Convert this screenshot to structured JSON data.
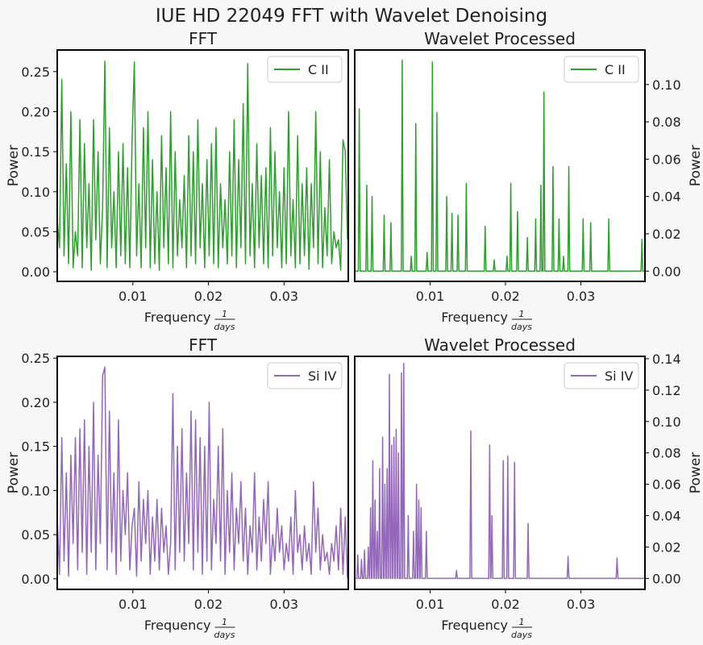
{
  "title": "IUE HD 22049 FFT with Wavelet Denoising",
  "colors": {
    "c_ii": "#2ca02c",
    "si_iv": "#9467bd",
    "background": "#f7f7f7"
  },
  "chart_data": [
    {
      "type": "line",
      "title": "FFT",
      "xlabel": "Frequency",
      "xlabel_fraction": {
        "num": "1",
        "den": "days"
      },
      "ylabel": "Power",
      "ylabel_side": "left",
      "legend": "top-right",
      "xlim": [
        0.0,
        0.0385
      ],
      "ylim": [
        -0.012,
        0.277
      ],
      "xticks": [
        0.01,
        0.02,
        0.03
      ],
      "xtick_labels": [
        "0.01",
        "0.02",
        "0.03"
      ],
      "yticks": [
        0.0,
        0.05,
        0.1,
        0.15,
        0.2,
        0.25
      ],
      "ytick_labels": [
        "0.00",
        "0.05",
        "0.10",
        "0.15",
        "0.20",
        "0.25"
      ],
      "series": [
        {
          "name": "C II",
          "color": "#2ca02c",
          "x": [
            0.0,
            0.0003,
            0.0006,
            0.0009,
            0.0012,
            0.0015,
            0.0018,
            0.0021,
            0.0024,
            0.0027,
            0.003,
            0.0033,
            0.0036,
            0.0039,
            0.0042,
            0.0045,
            0.0048,
            0.0051,
            0.0054,
            0.0057,
            0.006,
            0.0063,
            0.0066,
            0.0069,
            0.0072,
            0.0075,
            0.0078,
            0.0081,
            0.0084,
            0.0087,
            0.009,
            0.0093,
            0.0096,
            0.0099,
            0.0102,
            0.0105,
            0.0108,
            0.0111,
            0.0114,
            0.0117,
            0.012,
            0.0123,
            0.0126,
            0.0129,
            0.0132,
            0.0135,
            0.0138,
            0.0141,
            0.0144,
            0.0147,
            0.015,
            0.0153,
            0.0156,
            0.0159,
            0.0162,
            0.0165,
            0.0168,
            0.0171,
            0.0174,
            0.0177,
            0.018,
            0.0183,
            0.0186,
            0.0189,
            0.0192,
            0.0195,
            0.0198,
            0.0201,
            0.0204,
            0.0207,
            0.021,
            0.0213,
            0.0216,
            0.0219,
            0.0222,
            0.0225,
            0.0228,
            0.0231,
            0.0234,
            0.0237,
            0.024,
            0.0243,
            0.0246,
            0.0249,
            0.0252,
            0.0255,
            0.0258,
            0.0261,
            0.0264,
            0.0267,
            0.027,
            0.0273,
            0.0276,
            0.0279,
            0.0282,
            0.0285,
            0.0288,
            0.0291,
            0.0294,
            0.0297,
            0.03,
            0.0303,
            0.0306,
            0.0309,
            0.0312,
            0.0315,
            0.0318,
            0.0321,
            0.0324,
            0.0327,
            0.033,
            0.0333,
            0.0336,
            0.0339,
            0.0342,
            0.0345,
            0.0348,
            0.0351,
            0.0354,
            0.0357,
            0.036,
            0.0363,
            0.0366,
            0.0369,
            0.0372,
            0.0375,
            0.0378,
            0.0381,
            0.0384
          ],
          "y": [
            0.065,
            0.03,
            0.24,
            0.02,
            0.135,
            0.01,
            0.2,
            0.005,
            0.05,
            0.02,
            0.19,
            0.005,
            0.16,
            0.03,
            0.11,
            0.002,
            0.19,
            0.04,
            0.15,
            0.01,
            0.08,
            0.263,
            0.005,
            0.18,
            0.03,
            0.1,
            0.005,
            0.15,
            0.02,
            0.16,
            0.01,
            0.13,
            0.005,
            0.165,
            0.262,
            0.02,
            0.11,
            0.005,
            0.18,
            0.03,
            0.2,
            0.005,
            0.14,
            0.01,
            0.1,
            0.002,
            0.17,
            0.03,
            0.13,
            0.01,
            0.2,
            0.005,
            0.15,
            0.02,
            0.09,
            0.03,
            0.12,
            0.005,
            0.17,
            0.02,
            0.15,
            0.01,
            0.19,
            0.03,
            0.11,
            0.005,
            0.14,
            0.02,
            0.16,
            0.01,
            0.18,
            0.005,
            0.11,
            0.03,
            0.09,
            0.01,
            0.15,
            0.02,
            0.19,
            0.005,
            0.14,
            0.03,
            0.21,
            0.01,
            0.26,
            0.02,
            0.11,
            0.005,
            0.16,
            0.03,
            0.12,
            0.01,
            0.13,
            0.005,
            0.18,
            0.02,
            0.15,
            0.03,
            0.1,
            0.005,
            0.13,
            0.01,
            0.2,
            0.02,
            0.09,
            0.005,
            0.17,
            0.01,
            0.11,
            0.02,
            0.13,
            0.003,
            0.11,
            0.03,
            0.2,
            0.01,
            0.15,
            0.005,
            0.08,
            0.02,
            0.14,
            0.01,
            0.05,
            0.03,
            0.04,
            0.002,
            0.165,
            0.15,
            0.04
          ]
        }
      ]
    },
    {
      "type": "line",
      "title": "Wavelet Processed",
      "xlabel": "Frequency",
      "xlabel_fraction": {
        "num": "1",
        "den": "days"
      },
      "ylabel": "Power",
      "ylabel_side": "right",
      "legend": "top-right",
      "xlim": [
        0.0,
        0.0385
      ],
      "ylim": [
        -0.0055,
        0.1185
      ],
      "xticks": [
        0.01,
        0.02,
        0.03
      ],
      "xtick_labels": [
        "0.01",
        "0.02",
        "0.03"
      ],
      "yticks": [
        0.0,
        0.02,
        0.04,
        0.06,
        0.08,
        0.1
      ],
      "ytick_labels": [
        "0.00",
        "0.02",
        "0.04",
        "0.06",
        "0.08",
        "0.10"
      ],
      "series": [
        {
          "name": "C II",
          "color": "#2ca02c",
          "peaks": [
            [
              0.0006,
              0.087
            ],
            [
              0.0016,
              0.046
            ],
            [
              0.0023,
              0.04
            ],
            [
              0.0039,
              0.03
            ],
            [
              0.0048,
              0.026
            ],
            [
              0.0063,
              0.113
            ],
            [
              0.0075,
              0.008
            ],
            [
              0.0081,
              0.079
            ],
            [
              0.0096,
              0.01
            ],
            [
              0.0103,
              0.112
            ],
            [
              0.0109,
              0.085
            ],
            [
              0.0122,
              0.04
            ],
            [
              0.0129,
              0.031
            ],
            [
              0.0137,
              0.03
            ],
            [
              0.0148,
              0.047
            ],
            [
              0.0173,
              0.024
            ],
            [
              0.0185,
              0.006
            ],
            [
              0.0202,
              0.008
            ],
            [
              0.0207,
              0.047
            ],
            [
              0.0216,
              0.032
            ],
            [
              0.0229,
              0.018
            ],
            [
              0.024,
              0.028
            ],
            [
              0.0247,
              0.046
            ],
            [
              0.0251,
              0.096
            ],
            [
              0.0263,
              0.056
            ],
            [
              0.0271,
              0.028
            ],
            [
              0.0277,
              0.008
            ],
            [
              0.0284,
              0.056
            ],
            [
              0.0303,
              0.028
            ],
            [
              0.0313,
              0.026
            ],
            [
              0.0337,
              0.028
            ],
            [
              0.0381,
              0.017
            ]
          ]
        }
      ]
    },
    {
      "type": "line",
      "title": "FFT",
      "xlabel": "Frequency",
      "xlabel_fraction": {
        "num": "1",
        "den": "days"
      },
      "ylabel": "Power",
      "ylabel_side": "left",
      "legend": "top-right",
      "xlim": [
        0.0,
        0.0385
      ],
      "ylim": [
        -0.012,
        0.252
      ],
      "xticks": [
        0.01,
        0.02,
        0.03
      ],
      "xtick_labels": [
        "0.01",
        "0.02",
        "0.03"
      ],
      "yticks": [
        0.0,
        0.05,
        0.1,
        0.15,
        0.2,
        0.25
      ],
      "ytick_labels": [
        "0.00",
        "0.05",
        "0.10",
        "0.15",
        "0.20",
        "0.25"
      ],
      "series": [
        {
          "name": "Si IV",
          "color": "#9467bd",
          "x": [
            0.0,
            0.0003,
            0.0006,
            0.0009,
            0.0012,
            0.0015,
            0.0018,
            0.0021,
            0.0024,
            0.0027,
            0.003,
            0.0033,
            0.0036,
            0.0039,
            0.0042,
            0.0045,
            0.0048,
            0.0051,
            0.0054,
            0.0057,
            0.006,
            0.0063,
            0.0066,
            0.0069,
            0.0072,
            0.0075,
            0.0078,
            0.0081,
            0.0084,
            0.0087,
            0.009,
            0.0093,
            0.0096,
            0.0099,
            0.0102,
            0.0105,
            0.0108,
            0.0111,
            0.0114,
            0.0117,
            0.012,
            0.0123,
            0.0126,
            0.0129,
            0.0132,
            0.0135,
            0.0138,
            0.0141,
            0.0144,
            0.0147,
            0.015,
            0.0153,
            0.0156,
            0.0159,
            0.0162,
            0.0165,
            0.0168,
            0.0171,
            0.0174,
            0.0177,
            0.018,
            0.0183,
            0.0186,
            0.0189,
            0.0192,
            0.0195,
            0.0198,
            0.0201,
            0.0204,
            0.0207,
            0.021,
            0.0213,
            0.0216,
            0.0219,
            0.0222,
            0.0225,
            0.0228,
            0.0231,
            0.0234,
            0.0237,
            0.024,
            0.0243,
            0.0246,
            0.0249,
            0.0252,
            0.0255,
            0.0258,
            0.0261,
            0.0264,
            0.0267,
            0.027,
            0.0273,
            0.0276,
            0.0279,
            0.0282,
            0.0285,
            0.0288,
            0.0291,
            0.0294,
            0.0297,
            0.03,
            0.0303,
            0.0306,
            0.0309,
            0.0312,
            0.0315,
            0.0318,
            0.0321,
            0.0324,
            0.0327,
            0.033,
            0.0333,
            0.0336,
            0.0339,
            0.0342,
            0.0345,
            0.0348,
            0.0351,
            0.0354,
            0.0357,
            0.036,
            0.0363,
            0.0366,
            0.0369,
            0.0372,
            0.0375,
            0.0378,
            0.0381,
            0.0384
          ],
          "y": [
            0.07,
            0.005,
            0.16,
            0.02,
            0.12,
            0.003,
            0.14,
            0.04,
            0.16,
            0.01,
            0.17,
            0.03,
            0.18,
            0.005,
            0.15,
            0.03,
            0.2,
            0.01,
            0.14,
            0.04,
            0.23,
            0.24,
            0.01,
            0.19,
            0.03,
            0.12,
            0.005,
            0.18,
            0.02,
            0.1,
            0.05,
            0.12,
            0.01,
            0.06,
            0.08,
            0.003,
            0.11,
            0.02,
            0.09,
            0.04,
            0.1,
            0.005,
            0.07,
            0.02,
            0.09,
            0.01,
            0.08,
            0.03,
            0.06,
            0.005,
            0.04,
            0.21,
            0.01,
            0.15,
            0.03,
            0.17,
            0.02,
            0.12,
            0.04,
            0.19,
            0.01,
            0.18,
            0.03,
            0.16,
            0.005,
            0.15,
            0.02,
            0.2,
            0.01,
            0.09,
            0.04,
            0.15,
            0.02,
            0.17,
            0.005,
            0.1,
            0.03,
            0.12,
            0.01,
            0.08,
            0.04,
            0.11,
            0.02,
            0.08,
            0.005,
            0.06,
            0.03,
            0.12,
            0.01,
            0.07,
            0.02,
            0.09,
            0.04,
            0.11,
            0.005,
            0.05,
            0.02,
            0.08,
            0.03,
            0.06,
            0.01,
            0.04,
            0.02,
            0.07,
            0.005,
            0.1,
            0.03,
            0.05,
            0.01,
            0.06,
            0.02,
            0.04,
            0.005,
            0.11,
            0.03,
            0.08,
            0.01,
            0.05,
            0.02,
            0.03,
            0.005,
            0.04,
            0.02,
            0.06,
            0.01,
            0.08,
            0.005,
            0.07,
            0.0
          ]
        }
      ]
    },
    {
      "type": "line",
      "title": "Wavelet Processed",
      "xlabel": "Frequency",
      "xlabel_fraction": {
        "num": "1",
        "den": "days"
      },
      "ylabel": "Power",
      "ylabel_side": "right",
      "legend": "top-right",
      "xlim": [
        0.0,
        0.0385
      ],
      "ylim": [
        -0.007,
        0.1415
      ],
      "xticks": [
        0.01,
        0.02,
        0.03
      ],
      "xtick_labels": [
        "0.01",
        "0.02",
        "0.03"
      ],
      "yticks": [
        0.0,
        0.02,
        0.04,
        0.06,
        0.08,
        0.1,
        0.12,
        0.14
      ],
      "ytick_labels": [
        "0.00",
        "0.02",
        "0.04",
        "0.06",
        "0.08",
        "0.10",
        "0.12",
        "0.14"
      ],
      "series": [
        {
          "name": "Si IV",
          "color": "#9467bd",
          "peaks": [
            [
              0.0004,
              0.015
            ],
            [
              0.0009,
              0.012
            ],
            [
              0.0013,
              0.018
            ],
            [
              0.0018,
              0.02
            ],
            [
              0.0021,
              0.045
            ],
            [
              0.0024,
              0.075
            ],
            [
              0.0027,
              0.05
            ],
            [
              0.003,
              0.03
            ],
            [
              0.0033,
              0.07
            ],
            [
              0.0037,
              0.09
            ],
            [
              0.004,
              0.06
            ],
            [
              0.0043,
              0.07
            ],
            [
              0.0046,
              0.13
            ],
            [
              0.0049,
              0.085
            ],
            [
              0.0052,
              0.09
            ],
            [
              0.0055,
              0.095
            ],
            [
              0.0058,
              0.08
            ],
            [
              0.0062,
              0.131
            ],
            [
              0.0065,
              0.137
            ],
            [
              0.0071,
              0.04
            ],
            [
              0.0078,
              0.03
            ],
            [
              0.0082,
              0.06
            ],
            [
              0.0085,
              0.05
            ],
            [
              0.0088,
              0.045
            ],
            [
              0.0095,
              0.03
            ],
            [
              0.0135,
              0.005
            ],
            [
              0.0154,
              0.094
            ],
            [
              0.0179,
              0.085
            ],
            [
              0.0182,
              0.04
            ],
            [
              0.0197,
              0.075
            ],
            [
              0.0203,
              0.078
            ],
            [
              0.0212,
              0.074
            ],
            [
              0.023,
              0.035
            ],
            [
              0.0283,
              0.014
            ],
            [
              0.0348,
              0.013
            ]
          ]
        }
      ]
    }
  ]
}
